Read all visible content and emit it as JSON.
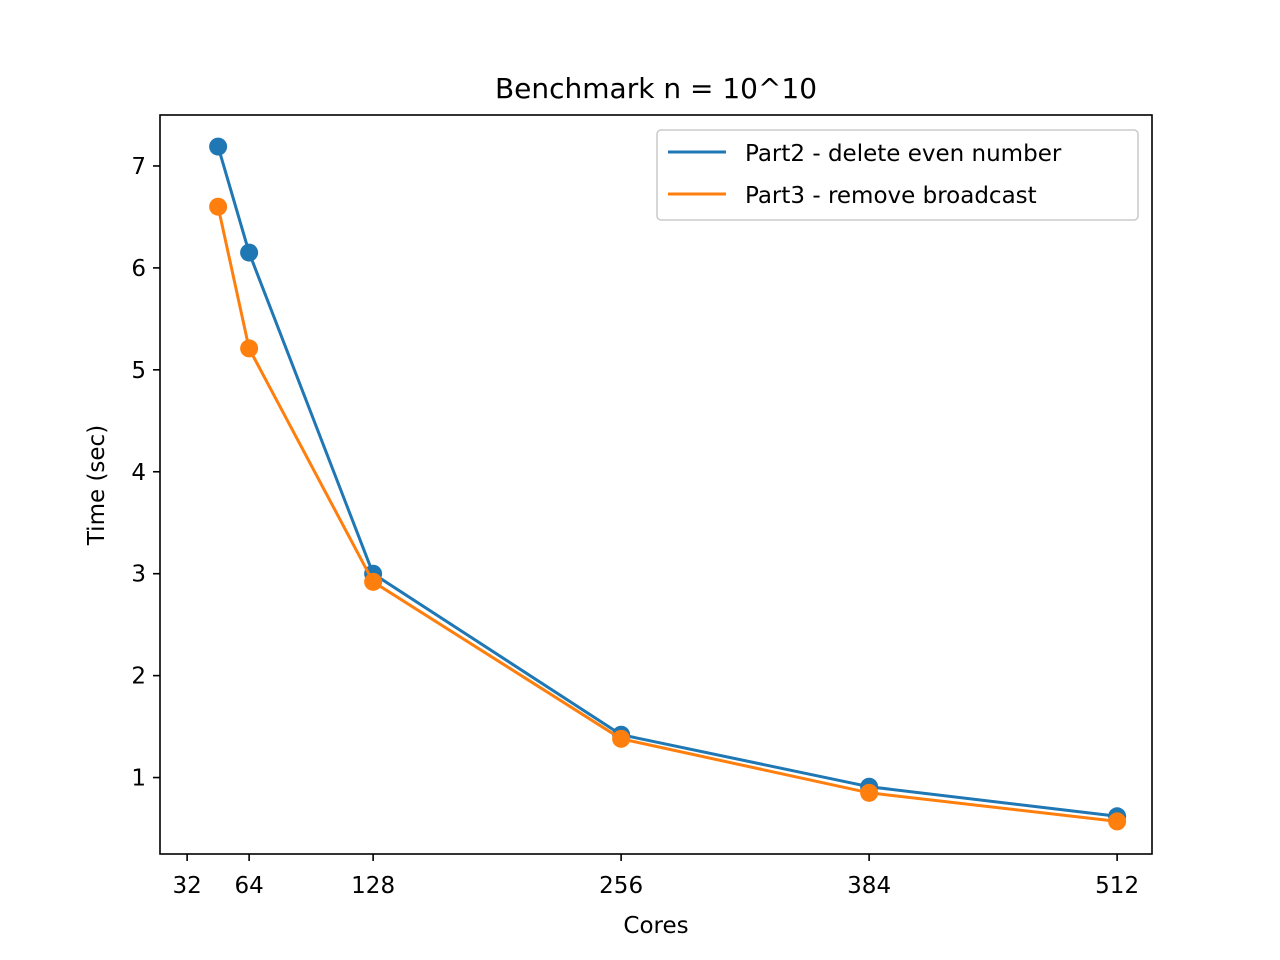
{
  "chart_data": {
    "type": "line",
    "title": "Benchmark n = 10^10",
    "xlabel": "Cores",
    "ylabel": "Time (sec)",
    "xlim": [
      18,
      530
    ],
    "ylim": [
      0.25,
      7.5
    ],
    "xticks": [
      32,
      64,
      128,
      256,
      384,
      512
    ],
    "yticks": [
      1,
      2,
      3,
      4,
      5,
      6,
      7
    ],
    "grid": false,
    "legend_position": "top-right",
    "series": [
      {
        "name": "Part2 - delete even number",
        "color": "#1f77b4",
        "marker": "circle",
        "x": [
          48,
          64,
          128,
          256,
          384,
          512
        ],
        "y": [
          7.19,
          6.15,
          3.0,
          1.42,
          0.91,
          0.62
        ]
      },
      {
        "name": "Part3 - remove broadcast",
        "color": "#ff7f0e",
        "marker": "circle",
        "x": [
          48,
          64,
          128,
          256,
          384,
          512
        ],
        "y": [
          6.6,
          5.21,
          2.92,
          1.38,
          0.85,
          0.57
        ]
      }
    ]
  }
}
